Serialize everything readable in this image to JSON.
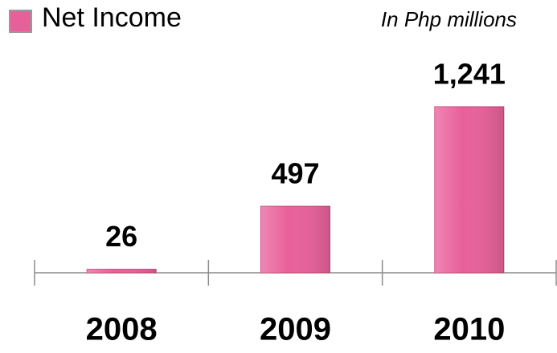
{
  "chart_data": {
    "type": "bar",
    "subtitle": "In Php millions",
    "categories": [
      "2008",
      "2009",
      "2010"
    ],
    "series": [
      {
        "name": "Net Income",
        "color": "#e8609a",
        "values": [
          26,
          497,
          1241
        ]
      }
    ],
    "value_labels": [
      "26",
      "497",
      "1,241"
    ]
  }
}
